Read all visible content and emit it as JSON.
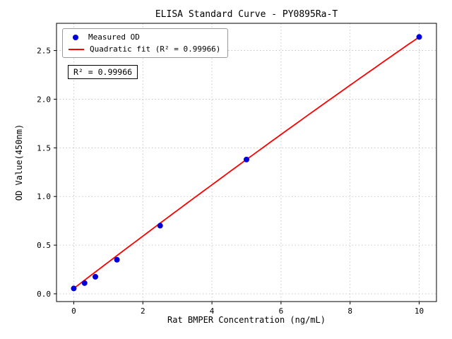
{
  "chart_data": {
    "type": "scatter",
    "title": "ELISA Standard Curve - PY0895Ra-T",
    "xlabel": "Rat BMPER Concentration (ng/mL)",
    "ylabel": "OD Value(450nm)",
    "xlim": [
      -0.5,
      10.5
    ],
    "ylim": [
      -0.08,
      2.78
    ],
    "grid": true,
    "xticks": [
      {
        "v": 0,
        "label": "0"
      },
      {
        "v": 2,
        "label": "2"
      },
      {
        "v": 4,
        "label": "4"
      },
      {
        "v": 6,
        "label": "6"
      },
      {
        "v": 8,
        "label": "8"
      },
      {
        "v": 10,
        "label": "10"
      }
    ],
    "yticks": [
      {
        "v": 0.0,
        "label": "0.0"
      },
      {
        "v": 0.5,
        "label": "0.5"
      },
      {
        "v": 1.0,
        "label": "1.0"
      },
      {
        "v": 1.5,
        "label": "1.5"
      },
      {
        "v": 2.0,
        "label": "2.0"
      },
      {
        "v": 2.5,
        "label": "2.5"
      }
    ],
    "series_name": "Measured OD",
    "points": [
      {
        "x": 0,
        "y": 0.055
      },
      {
        "x": 0.3125,
        "y": 0.11
      },
      {
        "x": 0.625,
        "y": 0.175
      },
      {
        "x": 1.25,
        "y": 0.35
      },
      {
        "x": 2.5,
        "y": 0.7
      },
      {
        "x": 5,
        "y": 1.38
      },
      {
        "x": 10,
        "y": 2.64
      }
    ],
    "fit": {
      "type": "quadratic",
      "r_squared": 0.99966,
      "coefficients": {
        "a": -0.0013,
        "b": 0.2715,
        "c": 0.055
      },
      "x_range": [
        0,
        10
      ]
    },
    "legend": {
      "position": "upper-left",
      "items": [
        {
          "marker": "dot",
          "label": "Measured OD"
        },
        {
          "marker": "line",
          "label": "Quadratic fit (R² = 0.99966)"
        }
      ]
    },
    "annotation": "R² = 0.99966",
    "colors": {
      "points": "#0000dd",
      "line": "#ff0000",
      "grid": "#bbbbbb",
      "frame": "#000000"
    }
  }
}
